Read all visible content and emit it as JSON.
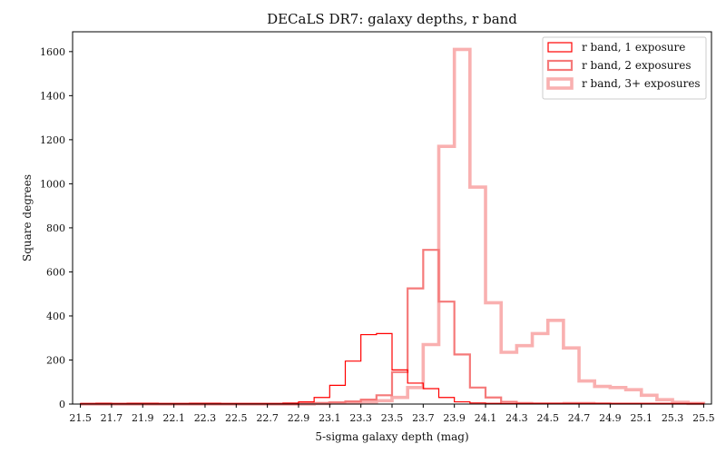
{
  "chart_data": {
    "type": "histogram-step",
    "title": "DECaLS DR7: galaxy depths, r band",
    "xlabel": "5-sigma galaxy depth (mag)",
    "ylabel": "Square degrees",
    "xlim": [
      21.45,
      25.55
    ],
    "ylim": [
      0,
      1690
    ],
    "xticks": [
      "21.5",
      "21.7",
      "21.9",
      "22.1",
      "22.3",
      "22.5",
      "22.7",
      "22.9",
      "23.1",
      "23.3",
      "23.5",
      "23.7",
      "23.9",
      "24.1",
      "24.3",
      "24.5",
      "24.7",
      "24.9",
      "25.1",
      "25.3",
      "25.5"
    ],
    "yticks": [
      "0",
      "200",
      "400",
      "600",
      "800",
      "1000",
      "1200",
      "1400",
      "1600"
    ],
    "grid": false,
    "legend_position": "top-right",
    "bin_edges": [
      21.5,
      21.6,
      21.7,
      21.8,
      21.9,
      22.0,
      22.1,
      22.2,
      22.3,
      22.4,
      22.5,
      22.6,
      22.7,
      22.8,
      22.9,
      23.0,
      23.1,
      23.2,
      23.3,
      23.4,
      23.5,
      23.6,
      23.7,
      23.8,
      23.9,
      24.0,
      24.1,
      24.2,
      24.3,
      24.4,
      24.5,
      24.6,
      24.7,
      24.8,
      24.9,
      25.0,
      25.1,
      25.2,
      25.3,
      25.4,
      25.5
    ],
    "series": [
      {
        "name": "r band, 1 exposure",
        "color": "#ff0000",
        "values": [
          2,
          3,
          2,
          3,
          3,
          2,
          2,
          3,
          3,
          2,
          2,
          2,
          2,
          4,
          10,
          30,
          85,
          195,
          315,
          320,
          155,
          95,
          70,
          30,
          10,
          5,
          3,
          2,
          2,
          2,
          2,
          2,
          2,
          2,
          2,
          2,
          2,
          2,
          2,
          2
        ]
      },
      {
        "name": "r band, 2 exposures",
        "color": "#f57a7a",
        "values": [
          0,
          0,
          0,
          0,
          0,
          0,
          0,
          0,
          0,
          0,
          0,
          0,
          0,
          0,
          3,
          5,
          8,
          12,
          20,
          40,
          145,
          525,
          700,
          465,
          225,
          75,
          30,
          10,
          5,
          3,
          3,
          5,
          5,
          3,
          2,
          2,
          2,
          2,
          2,
          2
        ]
      },
      {
        "name": "r band, 3+ exposures",
        "color": "#f9b0b0",
        "values": [
          0,
          0,
          0,
          0,
          0,
          0,
          0,
          0,
          0,
          0,
          0,
          0,
          0,
          0,
          0,
          2,
          5,
          5,
          10,
          15,
          30,
          75,
          270,
          1170,
          1610,
          985,
          460,
          235,
          265,
          320,
          380,
          255,
          105,
          80,
          75,
          65,
          40,
          20,
          8,
          3
        ]
      }
    ]
  }
}
